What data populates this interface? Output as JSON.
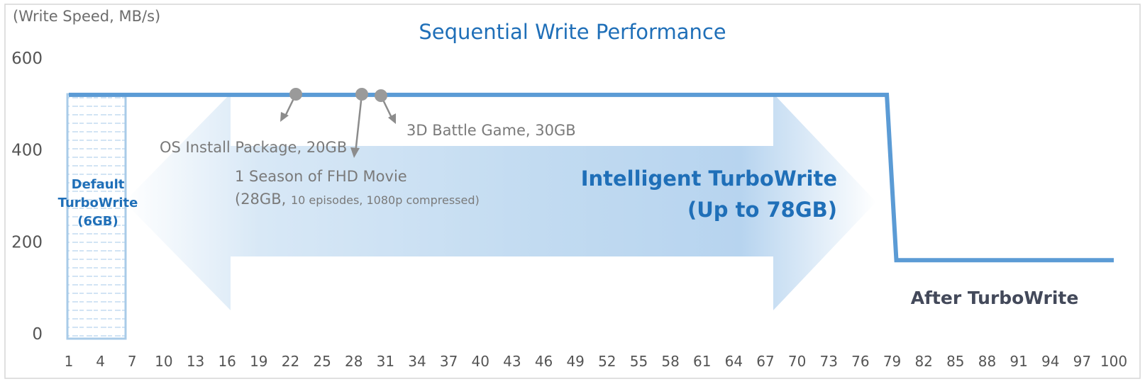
{
  "chart_data": {
    "type": "line",
    "title": "Sequential Write Performance",
    "ylabel": "(Write Speed, MB/s)",
    "xlabel": "",
    "ylim": [
      0,
      600
    ],
    "yticks": [
      "0",
      "200",
      "400",
      "600"
    ],
    "xticks": [
      "1",
      "4",
      "7",
      "10",
      "13",
      "16",
      "19",
      "22",
      "25",
      "28",
      "31",
      "34",
      "37",
      "40",
      "43",
      "46",
      "49",
      "52",
      "55",
      "58",
      "61",
      "64",
      "67",
      "70",
      "73",
      "76",
      "79",
      "82",
      "85",
      "88",
      "91",
      "94",
      "97",
      "100"
    ],
    "xlim": [
      1,
      100
    ],
    "grid": false,
    "series": [
      {
        "x": [
          1,
          78.5,
          79.4,
          100
        ],
        "y": [
          520,
          520,
          160,
          160
        ]
      }
    ],
    "regions": {
      "default_turbowrite": {
        "label_lines": [
          "Default",
          "TurboWrite",
          "(6GB)"
        ],
        "x_start": 1,
        "x_end": 6.5
      },
      "intelligent_turbowrite": {
        "label_lines": [
          "Intelligent TurboWrite",
          "(Up to 78GB)"
        ]
      },
      "after_label": "After TurboWrite"
    },
    "annotations": [
      {
        "x": 22,
        "y": 520,
        "label_lines": [
          "OS Install Package, 20GB"
        ]
      },
      {
        "x": 28,
        "y": 520,
        "label_lines": [
          "1 Season of FHD Movie",
          "(28GB, ",
          "10 episodes, 1080p compressed)"
        ]
      },
      {
        "x": 30,
        "y": 520,
        "label_lines": [
          "3D Battle Game, 30GB"
        ]
      }
    ],
    "colors": {
      "line": "#5b9bd5",
      "title": "#1f6fb8",
      "arrow": "#bdd7ee",
      "default_box_border": "#a9cbe8",
      "after_label": "#43495a",
      "annotation": "#7a7a7a",
      "pointer": "#8c8c8c"
    }
  }
}
